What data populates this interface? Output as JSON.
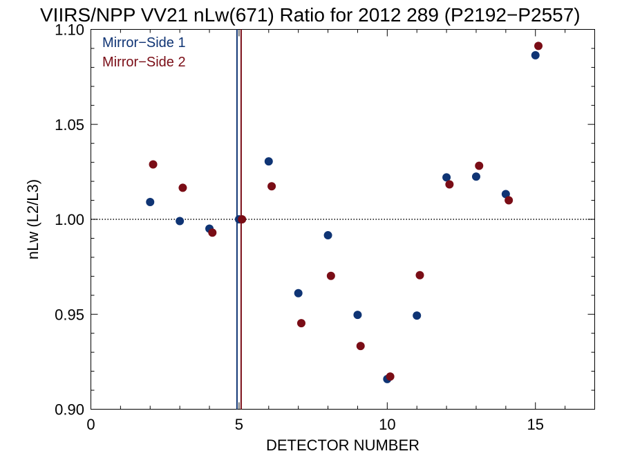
{
  "chart_data": {
    "type": "scatter",
    "title": "VIIRS/NPP VV21 nLw(671) Ratio for 2012 289 (P2192−P2557)",
    "xlabel": "DETECTOR NUMBER",
    "ylabel": "nLw (L2/L3)",
    "xlim": [
      0,
      17
    ],
    "ylim": [
      0.9,
      1.1
    ],
    "x_ticks": [
      0,
      5,
      10,
      15
    ],
    "x_tick_labels": [
      "0",
      "5",
      "10",
      "15"
    ],
    "y_ticks": [
      0.9,
      0.95,
      1.0,
      1.05,
      1.1
    ],
    "y_tick_labels": [
      "0.90",
      "0.95",
      "1.00",
      "1.05",
      "1.10"
    ],
    "reference_line": 1.0,
    "legend_position": "top-left",
    "series": [
      {
        "name": "Mirror−Side 1",
        "color": "#0f3474",
        "reference_detector": 5,
        "x": [
          2,
          3,
          4,
          5,
          6,
          7,
          8,
          9,
          10,
          11,
          12,
          13,
          14,
          15
        ],
        "y": [
          1.0091,
          0.9991,
          0.9951,
          1.0,
          1.0305,
          0.9611,
          0.9916,
          0.9497,
          0.9159,
          0.9493,
          1.0221,
          1.0225,
          1.0133,
          1.0864
        ]
      },
      {
        "name": "Mirror−Side 2",
        "color": "#7a0d16",
        "reference_detector": 5,
        "x": [
          2,
          3,
          4,
          5,
          6,
          7,
          8,
          9,
          10,
          11,
          12,
          13,
          14,
          15
        ],
        "y": [
          1.0289,
          1.0166,
          0.993,
          1.0,
          1.0174,
          0.9453,
          0.9702,
          0.9333,
          0.9172,
          0.9706,
          1.0184,
          1.0282,
          1.01,
          1.0913
        ]
      }
    ]
  }
}
